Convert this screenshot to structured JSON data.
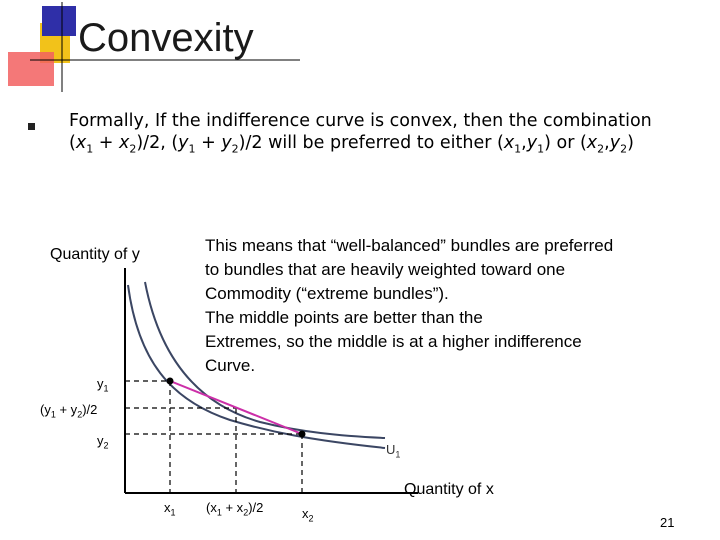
{
  "slide": {
    "title": "Convexity",
    "bullet": {
      "line1": "Formally, If the indifference curve is convex, then the combination",
      "line2_part1": "(",
      "x1": "x",
      "sub1": "1",
      "plus1": " + ",
      "x2": "x",
      "sub2": "2",
      "mid": ")/2, (",
      "y1": "y",
      "sub3": "1",
      "plus2": " + ",
      "y2": "y",
      "sub4": "2",
      "tail": ")/2 will be preferred to either (",
      "x1b": "x",
      "sub5": "1",
      "comma1": ",",
      "y1b": "y",
      "sub6": "1",
      "or": ") or (",
      "x2b": "x",
      "sub7": "2",
      "comma2": ",",
      "y2b": "y",
      "sub8": "2",
      "end": ")"
    },
    "explanation": [
      "This means that “well-balanced” bundles are preferred",
      "to bundles that are heavily weighted toward one",
      "Commodity (“extreme bundles”).",
      "The middle points are better than the",
      "Extremes, so the middle is at a higher indifference",
      "Curve."
    ],
    "page_number": "21"
  },
  "diagram": {
    "y_axis_label": "Quantity of y",
    "x_axis_label": "Quantity of x",
    "curve_label": "U",
    "curve_label_sub": "1",
    "y_ticks": {
      "y1": "y",
      "y1_sub": "1",
      "ymid_prefix": "(y",
      "ymid_sub1": "1",
      "ymid_mid": " + y",
      "ymid_sub2": "2",
      "ymid_suffix": ")/2",
      "y2": "y",
      "y2_sub": "2"
    },
    "x_ticks": {
      "x1": "x",
      "x1_sub": "1",
      "xmid_prefix": "(x",
      "xmid_sub1": "1",
      "xmid_mid": " + x",
      "xmid_sub2": "2",
      "xmid_suffix": ")/2",
      "x2": "x",
      "x2_sub": "2"
    },
    "colors": {
      "curve": "#3b4663",
      "chord": "#cc2fa8",
      "axis": "#000000",
      "logo_yellow": "#f2c21a",
      "logo_blue": "#2f2fa8",
      "logo_red": "#f24a4a"
    }
  }
}
